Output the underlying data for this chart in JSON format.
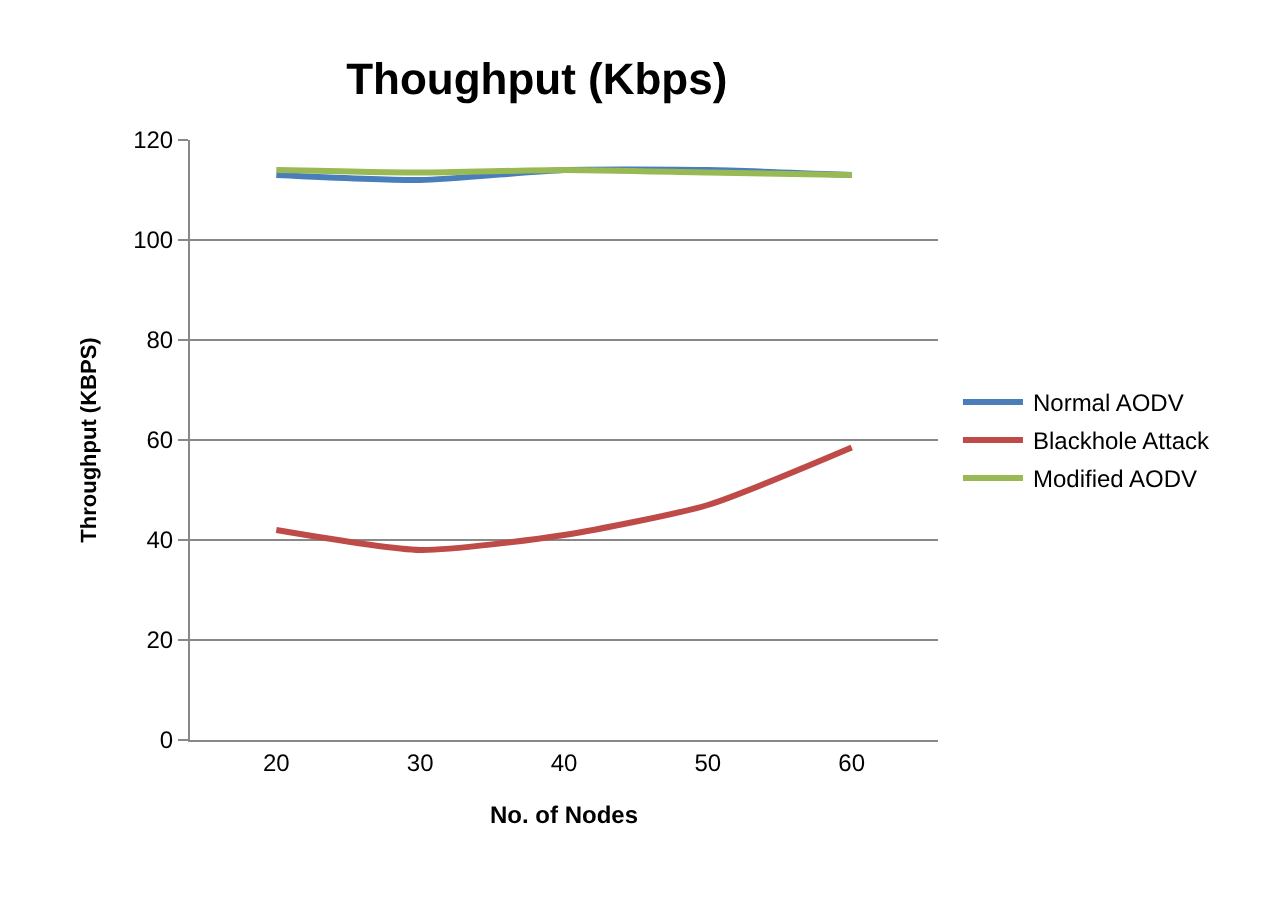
{
  "chart_data": {
    "type": "line",
    "title": "Thoughput (Kbps)",
    "xlabel": "No. of Nodes",
    "ylabel": "Throughput (KBPS)",
    "categories": [
      "20",
      "30",
      "40",
      "50",
      "60"
    ],
    "series": [
      {
        "name": "Normal AODV",
        "color": "#4a7ebb",
        "values": [
          113,
          112,
          114,
          114,
          113
        ]
      },
      {
        "name": "Blackhole Attack",
        "color": "#be4b48",
        "values": [
          42,
          38,
          41,
          47,
          58.5
        ]
      },
      {
        "name": "Modified AODV",
        "color": "#98b954",
        "values": [
          114,
          113.5,
          114,
          113.5,
          113
        ]
      }
    ],
    "ylim": [
      0,
      120
    ],
    "yticks": [
      0,
      20,
      40,
      60,
      80,
      100,
      120
    ],
    "grid": "y",
    "legend": "right",
    "marker": "none",
    "line_style": "solid"
  }
}
